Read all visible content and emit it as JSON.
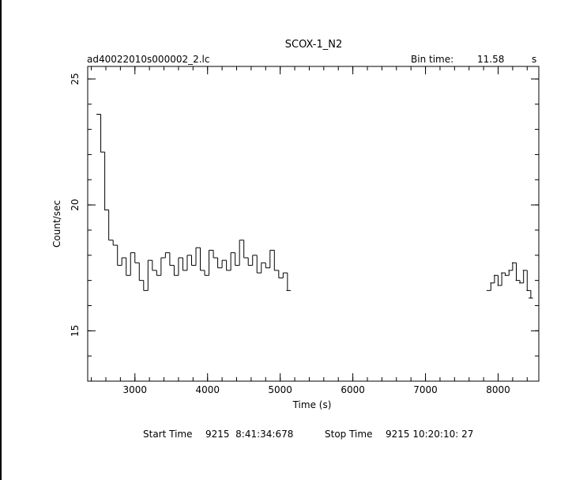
{
  "chart_data": {
    "type": "line",
    "title": "SCOX-1_N2",
    "filename": "ad40022010s000002_2.lc",
    "bin_time_label": "Bin time:",
    "bin_time_value": "11.58",
    "bin_time_unit": "s",
    "xlabel": "Time (s)",
    "ylabel": "Count/sec",
    "xlim": [
      2350,
      8560
    ],
    "ylim": [
      13,
      25.5
    ],
    "x_ticks": [
      3000,
      4000,
      5000,
      6000,
      7000,
      8000
    ],
    "x_tick_labels": [
      "3000",
      "4000",
      "5000",
      "6000",
      "7000",
      "8000"
    ],
    "y_ticks": [
      15,
      20,
      25
    ],
    "y_tick_labels": [
      "15",
      "20",
      "25"
    ],
    "x_minor_step": 200,
    "y_minor_step": 1,
    "grid": false,
    "series": [
      {
        "x": [
          2470,
          2525,
          2580,
          2640,
          2700,
          2760,
          2820,
          2880,
          2940,
          3000,
          3060,
          3120,
          3180,
          3240,
          3300,
          3360,
          3420,
          3480,
          3540,
          3600,
          3660,
          3720,
          3780,
          3840,
          3900,
          3960,
          4020,
          4080,
          4140,
          4200,
          4260,
          4320,
          4380,
          4440,
          4500,
          4560,
          4620,
          4680,
          4740,
          4800,
          4860,
          4920,
          4980,
          5040,
          5085,
          7840,
          7890,
          7940,
          7990,
          8040,
          8090,
          8140,
          8190,
          8240,
          8290,
          8340,
          8390,
          8420
        ],
        "y": [
          23.6,
          22.1,
          19.8,
          18.6,
          18.4,
          17.6,
          17.9,
          17.2,
          18.1,
          17.7,
          17.0,
          16.6,
          17.8,
          17.4,
          17.2,
          17.9,
          18.1,
          17.6,
          17.2,
          17.9,
          17.4,
          18.0,
          17.6,
          18.3,
          17.4,
          17.2,
          18.2,
          17.9,
          17.5,
          17.8,
          17.4,
          18.1,
          17.6,
          18.6,
          17.9,
          17.6,
          18.0,
          17.3,
          17.7,
          17.5,
          18.2,
          17.4,
          17.1,
          17.3,
          16.6,
          16.6,
          16.9,
          17.2,
          16.8,
          17.3,
          17.2,
          17.4,
          17.7,
          17.0,
          16.9,
          17.4,
          16.6,
          16.3
        ]
      }
    ]
  },
  "footer": {
    "start_label": "Start Time",
    "start_value": "9215  8:41:34:678",
    "stop_label": "Stop Time",
    "stop_value": "9215 10:20:10: 27"
  }
}
